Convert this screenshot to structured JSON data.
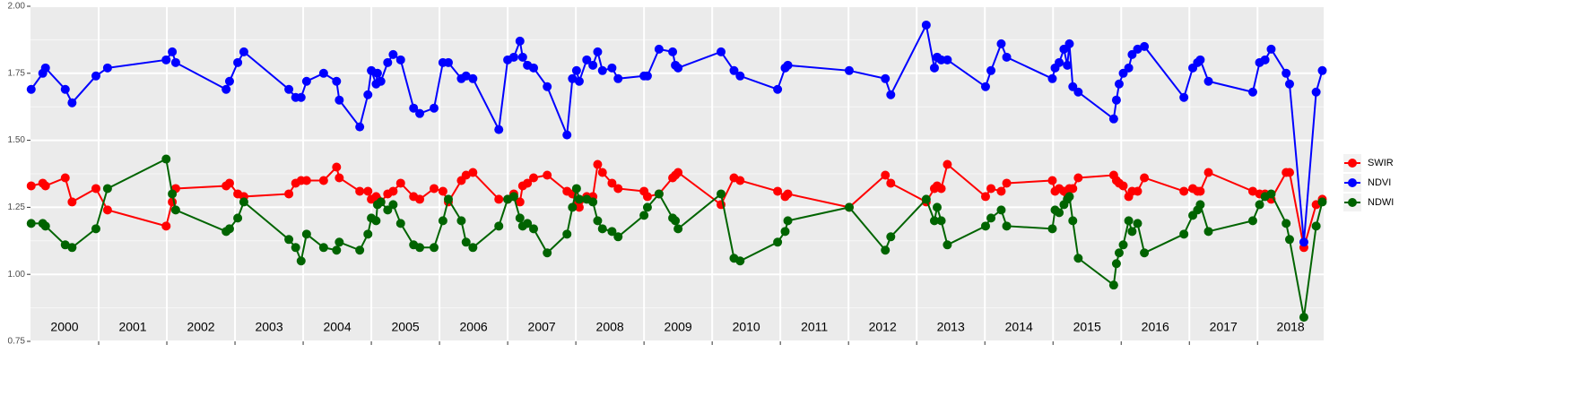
{
  "chart_data": {
    "type": "line",
    "x": [
      2000.01,
      2000.18,
      2000.22,
      2000.51,
      2000.61,
      2000.96,
      2001.13,
      2001.99,
      2002.08,
      2002.13,
      2002.87,
      2002.92,
      2003.04,
      2003.13,
      2003.79,
      2003.89,
      2003.97,
      2004.05,
      2004.3,
      2004.49,
      2004.53,
      2004.83,
      2004.95,
      2005.0,
      2005.07,
      2005.09,
      2005.14,
      2005.24,
      2005.32,
      2005.43,
      2005.62,
      2005.71,
      2005.92,
      2006.05,
      2006.13,
      2006.32,
      2006.39,
      2006.49,
      2006.87,
      2007.0,
      2007.09,
      2007.18,
      2007.22,
      2007.29,
      2007.38,
      2007.58,
      2007.87,
      2007.95,
      2008.01,
      2008.05,
      2008.16,
      2008.25,
      2008.32,
      2008.39,
      2008.53,
      2008.62,
      2009.0,
      2009.05,
      2009.22,
      2009.42,
      2009.46,
      2009.5,
      2010.13,
      2010.32,
      2010.41,
      2010.96,
      2011.07,
      2011.11,
      2012.01,
      2012.54,
      2012.62,
      2013.14,
      2013.26,
      2013.3,
      2013.36,
      2013.45,
      2014.01,
      2014.09,
      2014.24,
      2014.32,
      2014.99,
      2015.03,
      2015.09,
      2015.16,
      2015.21,
      2015.24,
      2015.29,
      2015.37,
      2015.89,
      2015.93,
      2015.97,
      2016.03,
      2016.11,
      2016.16,
      2016.24,
      2016.34,
      2016.92,
      2017.05,
      2017.12,
      2017.16,
      2017.28,
      2017.93,
      2018.03,
      2018.11,
      2018.2,
      2018.42,
      2018.47,
      2018.68,
      2018.86,
      2018.95
    ],
    "series": [
      {
        "name": "SWIR",
        "color": "#ff0000",
        "values": [
          1.33,
          1.34,
          1.33,
          1.36,
          1.27,
          1.32,
          1.24,
          1.18,
          1.27,
          1.32,
          1.33,
          1.34,
          1.3,
          1.29,
          1.3,
          1.34,
          1.35,
          1.35,
          1.35,
          1.4,
          1.36,
          1.31,
          1.31,
          1.28,
          1.29,
          1.28,
          1.27,
          1.3,
          1.31,
          1.34,
          1.29,
          1.28,
          1.32,
          1.31,
          1.27,
          1.35,
          1.37,
          1.38,
          1.28,
          1.28,
          1.3,
          1.27,
          1.33,
          1.34,
          1.36,
          1.37,
          1.31,
          1.3,
          1.26,
          1.25,
          1.29,
          1.29,
          1.41,
          1.38,
          1.34,
          1.32,
          1.31,
          1.29,
          1.3,
          1.36,
          1.37,
          1.38,
          1.26,
          1.36,
          1.35,
          1.31,
          1.29,
          1.3,
          1.25,
          1.37,
          1.34,
          1.27,
          1.32,
          1.33,
          1.32,
          1.41,
          1.29,
          1.32,
          1.31,
          1.34,
          1.35,
          1.31,
          1.32,
          1.31,
          1.3,
          1.32,
          1.32,
          1.36,
          1.37,
          1.35,
          1.34,
          1.33,
          1.29,
          1.31,
          1.31,
          1.36,
          1.31,
          1.32,
          1.31,
          1.31,
          1.38,
          1.31,
          1.3,
          1.3,
          1.28,
          1.38,
          1.38,
          1.1,
          1.26,
          1.28
        ]
      },
      {
        "name": "NDVI",
        "color": "#0000ff",
        "values": [
          1.69,
          1.75,
          1.77,
          1.69,
          1.64,
          1.74,
          1.77,
          1.8,
          1.83,
          1.79,
          1.69,
          1.72,
          1.79,
          1.83,
          1.69,
          1.66,
          1.66,
          1.72,
          1.75,
          1.72,
          1.65,
          1.55,
          1.67,
          1.76,
          1.71,
          1.75,
          1.72,
          1.79,
          1.82,
          1.8,
          1.62,
          1.6,
          1.62,
          1.79,
          1.79,
          1.73,
          1.74,
          1.73,
          1.54,
          1.8,
          1.81,
          1.87,
          1.81,
          1.78,
          1.77,
          1.7,
          1.52,
          1.73,
          1.76,
          1.72,
          1.8,
          1.78,
          1.83,
          1.76,
          1.77,
          1.73,
          1.74,
          1.74,
          1.84,
          1.83,
          1.78,
          1.77,
          1.83,
          1.76,
          1.74,
          1.69,
          1.77,
          1.78,
          1.76,
          1.73,
          1.67,
          1.93,
          1.77,
          1.81,
          1.8,
          1.8,
          1.7,
          1.76,
          1.86,
          1.81,
          1.73,
          1.77,
          1.79,
          1.84,
          1.78,
          1.86,
          1.7,
          1.68,
          1.58,
          1.65,
          1.71,
          1.75,
          1.77,
          1.82,
          1.84,
          1.85,
          1.66,
          1.77,
          1.79,
          1.8,
          1.72,
          1.68,
          1.79,
          1.8,
          1.84,
          1.75,
          1.71,
          1.12,
          1.68,
          1.76
        ]
      },
      {
        "name": "NDWI",
        "color": "#006400",
        "values": [
          1.19,
          1.19,
          1.18,
          1.11,
          1.1,
          1.17,
          1.32,
          1.43,
          1.3,
          1.24,
          1.16,
          1.17,
          1.21,
          1.27,
          1.13,
          1.1,
          1.05,
          1.15,
          1.1,
          1.09,
          1.12,
          1.09,
          1.15,
          1.21,
          1.2,
          1.26,
          1.27,
          1.24,
          1.26,
          1.19,
          1.11,
          1.1,
          1.1,
          1.2,
          1.28,
          1.2,
          1.12,
          1.1,
          1.18,
          1.28,
          1.29,
          1.21,
          1.18,
          1.19,
          1.17,
          1.08,
          1.15,
          1.25,
          1.32,
          1.28,
          1.28,
          1.27,
          1.2,
          1.17,
          1.16,
          1.14,
          1.22,
          1.25,
          1.3,
          1.21,
          1.2,
          1.17,
          1.3,
          1.06,
          1.05,
          1.12,
          1.16,
          1.2,
          1.25,
          1.09,
          1.14,
          1.28,
          1.2,
          1.25,
          1.2,
          1.11,
          1.18,
          1.21,
          1.24,
          1.18,
          1.17,
          1.24,
          1.23,
          1.26,
          1.28,
          1.29,
          1.2,
          1.06,
          0.96,
          1.04,
          1.08,
          1.11,
          1.2,
          1.16,
          1.19,
          1.08,
          1.15,
          1.22,
          1.24,
          1.26,
          1.16,
          1.2,
          1.26,
          1.29,
          1.3,
          1.19,
          1.13,
          0.84,
          1.18,
          1.27
        ]
      }
    ],
    "xlim": [
      2000,
      2018.97
    ],
    "xticks": [
      2001,
      2002,
      2003,
      2004,
      2005,
      2006,
      2007,
      2008,
      2009,
      2010,
      2011,
      2012,
      2013,
      2014,
      2015,
      2016,
      2017,
      2018
    ],
    "year_labels": [
      "2000",
      "2001",
      "2002",
      "2003",
      "2004",
      "2005",
      "2006",
      "2007",
      "2008",
      "2009",
      "2010",
      "2011",
      "2012",
      "2013",
      "2014",
      "2015",
      "2016",
      "2017",
      "2018"
    ],
    "ylim": [
      0.75,
      2.0
    ],
    "yticks": [
      0.75,
      {
        "value": 1.0,
        "label": "1.00"
      },
      1.25,
      {
        "value": 1.5,
        "label": "1.50"
      },
      1.75,
      {
        "value": 2.0,
        "label": "2.00"
      }
    ],
    "grid": true,
    "legend": "right"
  }
}
